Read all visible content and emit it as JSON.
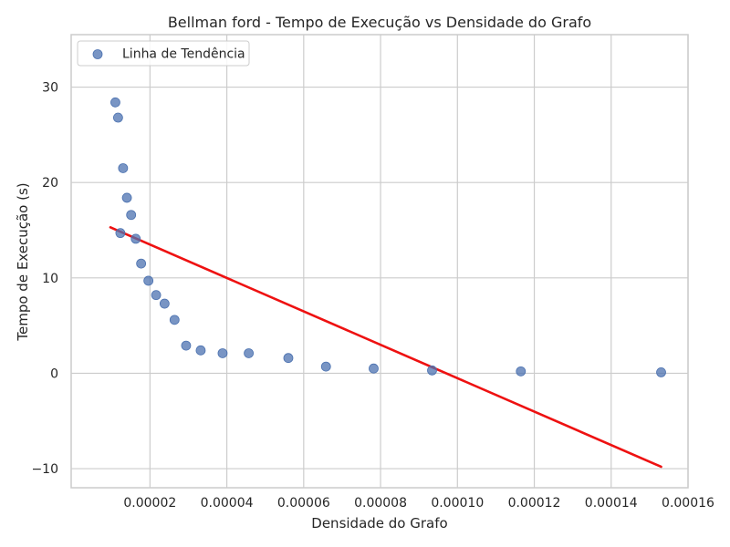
{
  "chart_data": {
    "type": "scatter",
    "title": "Bellman ford - Tempo de Execução vs Densidade do Grafo",
    "xlabel": "Densidade do Grafo",
    "ylabel": "Tempo de Execução (s)",
    "xlim": [
      -5e-07,
      0.00016
    ],
    "ylim": [
      -12,
      35.5
    ],
    "xticks": [
      2e-05,
      4e-05,
      6e-05,
      8e-05,
      0.0001,
      0.00012,
      0.00014,
      0.00016
    ],
    "xtick_labels": [
      "0.00002",
      "0.00004",
      "0.00006",
      "0.00008",
      "0.00010",
      "0.00012",
      "0.00014",
      "0.00016"
    ],
    "yticks": [
      -10,
      0,
      10,
      20,
      30
    ],
    "ytick_labels": [
      "−10",
      "0",
      "10",
      "20",
      "30"
    ],
    "grid": true,
    "legend": {
      "placement": "top-left",
      "entries": [
        {
          "label": "Linha de Tendência",
          "marker": "circle",
          "color": "#4c72b0"
        }
      ]
    },
    "series": [
      {
        "kind": "scatter",
        "color": "#4c72b0",
        "points": [
          {
            "x": 1.1e-05,
            "y": 28.4
          },
          {
            "x": 1.17e-05,
            "y": 26.8
          },
          {
            "x": 1.23e-05,
            "y": 14.7
          },
          {
            "x": 1.3e-05,
            "y": 21.5
          },
          {
            "x": 1.4e-05,
            "y": 18.4
          },
          {
            "x": 1.51e-05,
            "y": 16.6
          },
          {
            "x": 1.63e-05,
            "y": 14.1
          },
          {
            "x": 1.77e-05,
            "y": 11.5
          },
          {
            "x": 1.96e-05,
            "y": 9.7
          },
          {
            "x": 2.16e-05,
            "y": 8.2
          },
          {
            "x": 2.38e-05,
            "y": 7.3
          },
          {
            "x": 2.64e-05,
            "y": 5.6
          },
          {
            "x": 2.94e-05,
            "y": 2.9
          },
          {
            "x": 3.32e-05,
            "y": 2.4
          },
          {
            "x": 3.89e-05,
            "y": 2.1
          },
          {
            "x": 4.57e-05,
            "y": 2.1
          },
          {
            "x": 5.6e-05,
            "y": 1.6
          },
          {
            "x": 6.58e-05,
            "y": 0.7
          },
          {
            "x": 7.82e-05,
            "y": 0.5
          },
          {
            "x": 9.34e-05,
            "y": 0.3
          },
          {
            "x": 0.0001165,
            "y": 0.2
          },
          {
            "x": 0.000153,
            "y": 0.1
          }
        ]
      },
      {
        "kind": "line",
        "color": "#ee1111",
        "points": [
          {
            "x": 9.7e-06,
            "y": 15.3
          },
          {
            "x": 0.000153,
            "y": -9.8
          }
        ]
      }
    ]
  }
}
